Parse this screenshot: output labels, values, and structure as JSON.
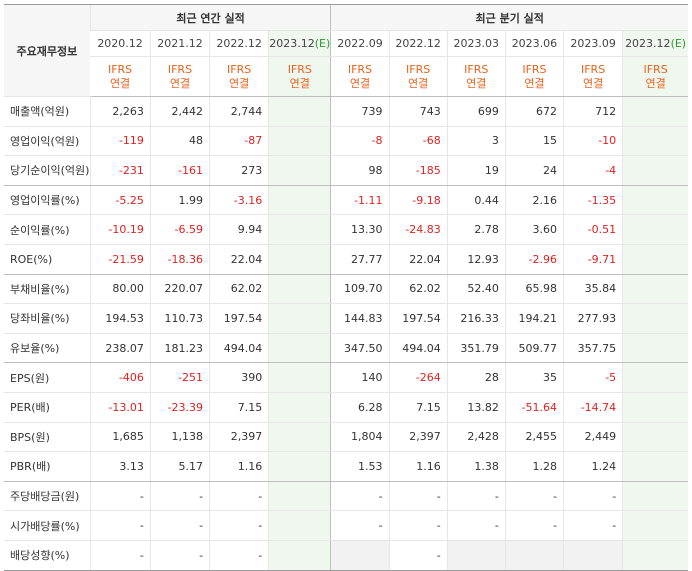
{
  "corner_label": "주요재무정보",
  "groups": {
    "annual": "최근 연간 실적",
    "quarterly": "최근 분기 실적"
  },
  "periods": [
    {
      "label": "2020.12",
      "est": ""
    },
    {
      "label": "2021.12",
      "est": ""
    },
    {
      "label": "2022.12",
      "est": ""
    },
    {
      "label": "2023.12",
      "est": "(E)"
    },
    {
      "label": "2022.09",
      "est": ""
    },
    {
      "label": "2022.12",
      "est": ""
    },
    {
      "label": "2023.03",
      "est": ""
    },
    {
      "label": "2023.06",
      "est": ""
    },
    {
      "label": "2023.09",
      "est": ""
    },
    {
      "label": "2023.12",
      "est": "(E)"
    }
  ],
  "standard": {
    "line1": "IFRS",
    "line2": "연결"
  },
  "rows": [
    {
      "label": "매출액(억원)",
      "values": [
        "2,263",
        "2,442",
        "2,744",
        "",
        "739",
        "743",
        "699",
        "672",
        "712",
        ""
      ]
    },
    {
      "label": "영업이익(억원)",
      "values": [
        "-119",
        "48",
        "-87",
        "",
        "-8",
        "-68",
        "3",
        "15",
        "-10",
        ""
      ]
    },
    {
      "label": "당기순이익(억원)",
      "values": [
        "-231",
        "-161",
        "273",
        "",
        "98",
        "-185",
        "19",
        "24",
        "-4",
        ""
      ]
    },
    {
      "label": "영업이익률(%)",
      "values": [
        "-5.25",
        "1.99",
        "-3.16",
        "",
        "-1.11",
        "-9.18",
        "0.44",
        "2.16",
        "-1.35",
        ""
      ]
    },
    {
      "label": "순이익률(%)",
      "values": [
        "-10.19",
        "-6.59",
        "9.94",
        "",
        "13.30",
        "-24.83",
        "2.78",
        "3.60",
        "-0.51",
        ""
      ]
    },
    {
      "label": "ROE(%)",
      "values": [
        "-21.59",
        "-18.36",
        "22.04",
        "",
        "27.77",
        "22.04",
        "12.93",
        "-2.96",
        "-9.71",
        ""
      ]
    },
    {
      "label": "부채비율(%)",
      "values": [
        "80.00",
        "220.07",
        "62.02",
        "",
        "109.70",
        "62.02",
        "52.40",
        "65.98",
        "35.84",
        ""
      ]
    },
    {
      "label": "당좌비율(%)",
      "values": [
        "194.53",
        "110.73",
        "197.54",
        "",
        "144.83",
        "197.54",
        "216.33",
        "194.21",
        "277.93",
        ""
      ]
    },
    {
      "label": "유보율(%)",
      "values": [
        "238.07",
        "181.23",
        "494.04",
        "",
        "347.50",
        "494.04",
        "351.79",
        "509.77",
        "357.75",
        ""
      ]
    },
    {
      "label": "EPS(원)",
      "values": [
        "-406",
        "-251",
        "390",
        "",
        "140",
        "-264",
        "28",
        "35",
        "-5",
        ""
      ]
    },
    {
      "label": "PER(배)",
      "values": [
        "-13.01",
        "-23.39",
        "7.15",
        "",
        "6.28",
        "7.15",
        "13.82",
        "-51.64",
        "-14.74",
        ""
      ]
    },
    {
      "label": "BPS(원)",
      "values": [
        "1,685",
        "1,138",
        "2,397",
        "",
        "1,804",
        "2,397",
        "2,428",
        "2,455",
        "2,449",
        ""
      ]
    },
    {
      "label": "PBR(배)",
      "values": [
        "3.13",
        "5.17",
        "1.16",
        "",
        "1.53",
        "1.16",
        "1.38",
        "1.28",
        "1.24",
        ""
      ]
    },
    {
      "label": "주당배당금(원)",
      "values": [
        "-",
        "-",
        "-",
        "",
        "-",
        "-",
        "-",
        "-",
        "-",
        ""
      ]
    },
    {
      "label": "시가배당률(%)",
      "values": [
        "-",
        "-",
        "-",
        "",
        "-",
        "-",
        "-",
        "-",
        "-",
        ""
      ]
    },
    {
      "label": "배당성향(%)",
      "values": [
        "-",
        "-",
        "-",
        "",
        "",
        "-",
        "",
        "",
        "",
        ""
      ]
    }
  ],
  "colors": {
    "negative": "#e02121",
    "standard_text": "#e8621c",
    "estimate_bg": "#f0f7ef",
    "estimate_mark": "#2e9a2e"
  }
}
